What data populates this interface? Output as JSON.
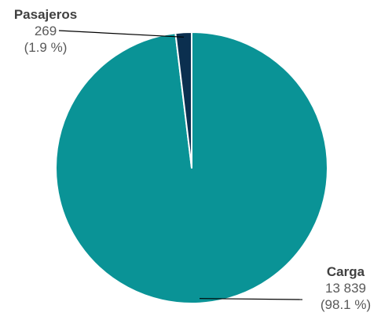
{
  "chart_data": {
    "type": "pie",
    "title": "",
    "start_angle_deg": 0,
    "direction": "clockwise",
    "series": [
      {
        "values": [
          13839,
          269
        ],
        "categories": [
          "Carga",
          "Pasajeros"
        ],
        "value_labels": [
          "13 839",
          "269"
        ],
        "percent_labels": [
          "(98.1 %)",
          "(1.9 %)"
        ],
        "colors": [
          "#0a9396",
          "#0b2f4f"
        ]
      }
    ],
    "slice_border_color": "#ffffff",
    "leader_line_color": "#000000",
    "legend": "none"
  }
}
